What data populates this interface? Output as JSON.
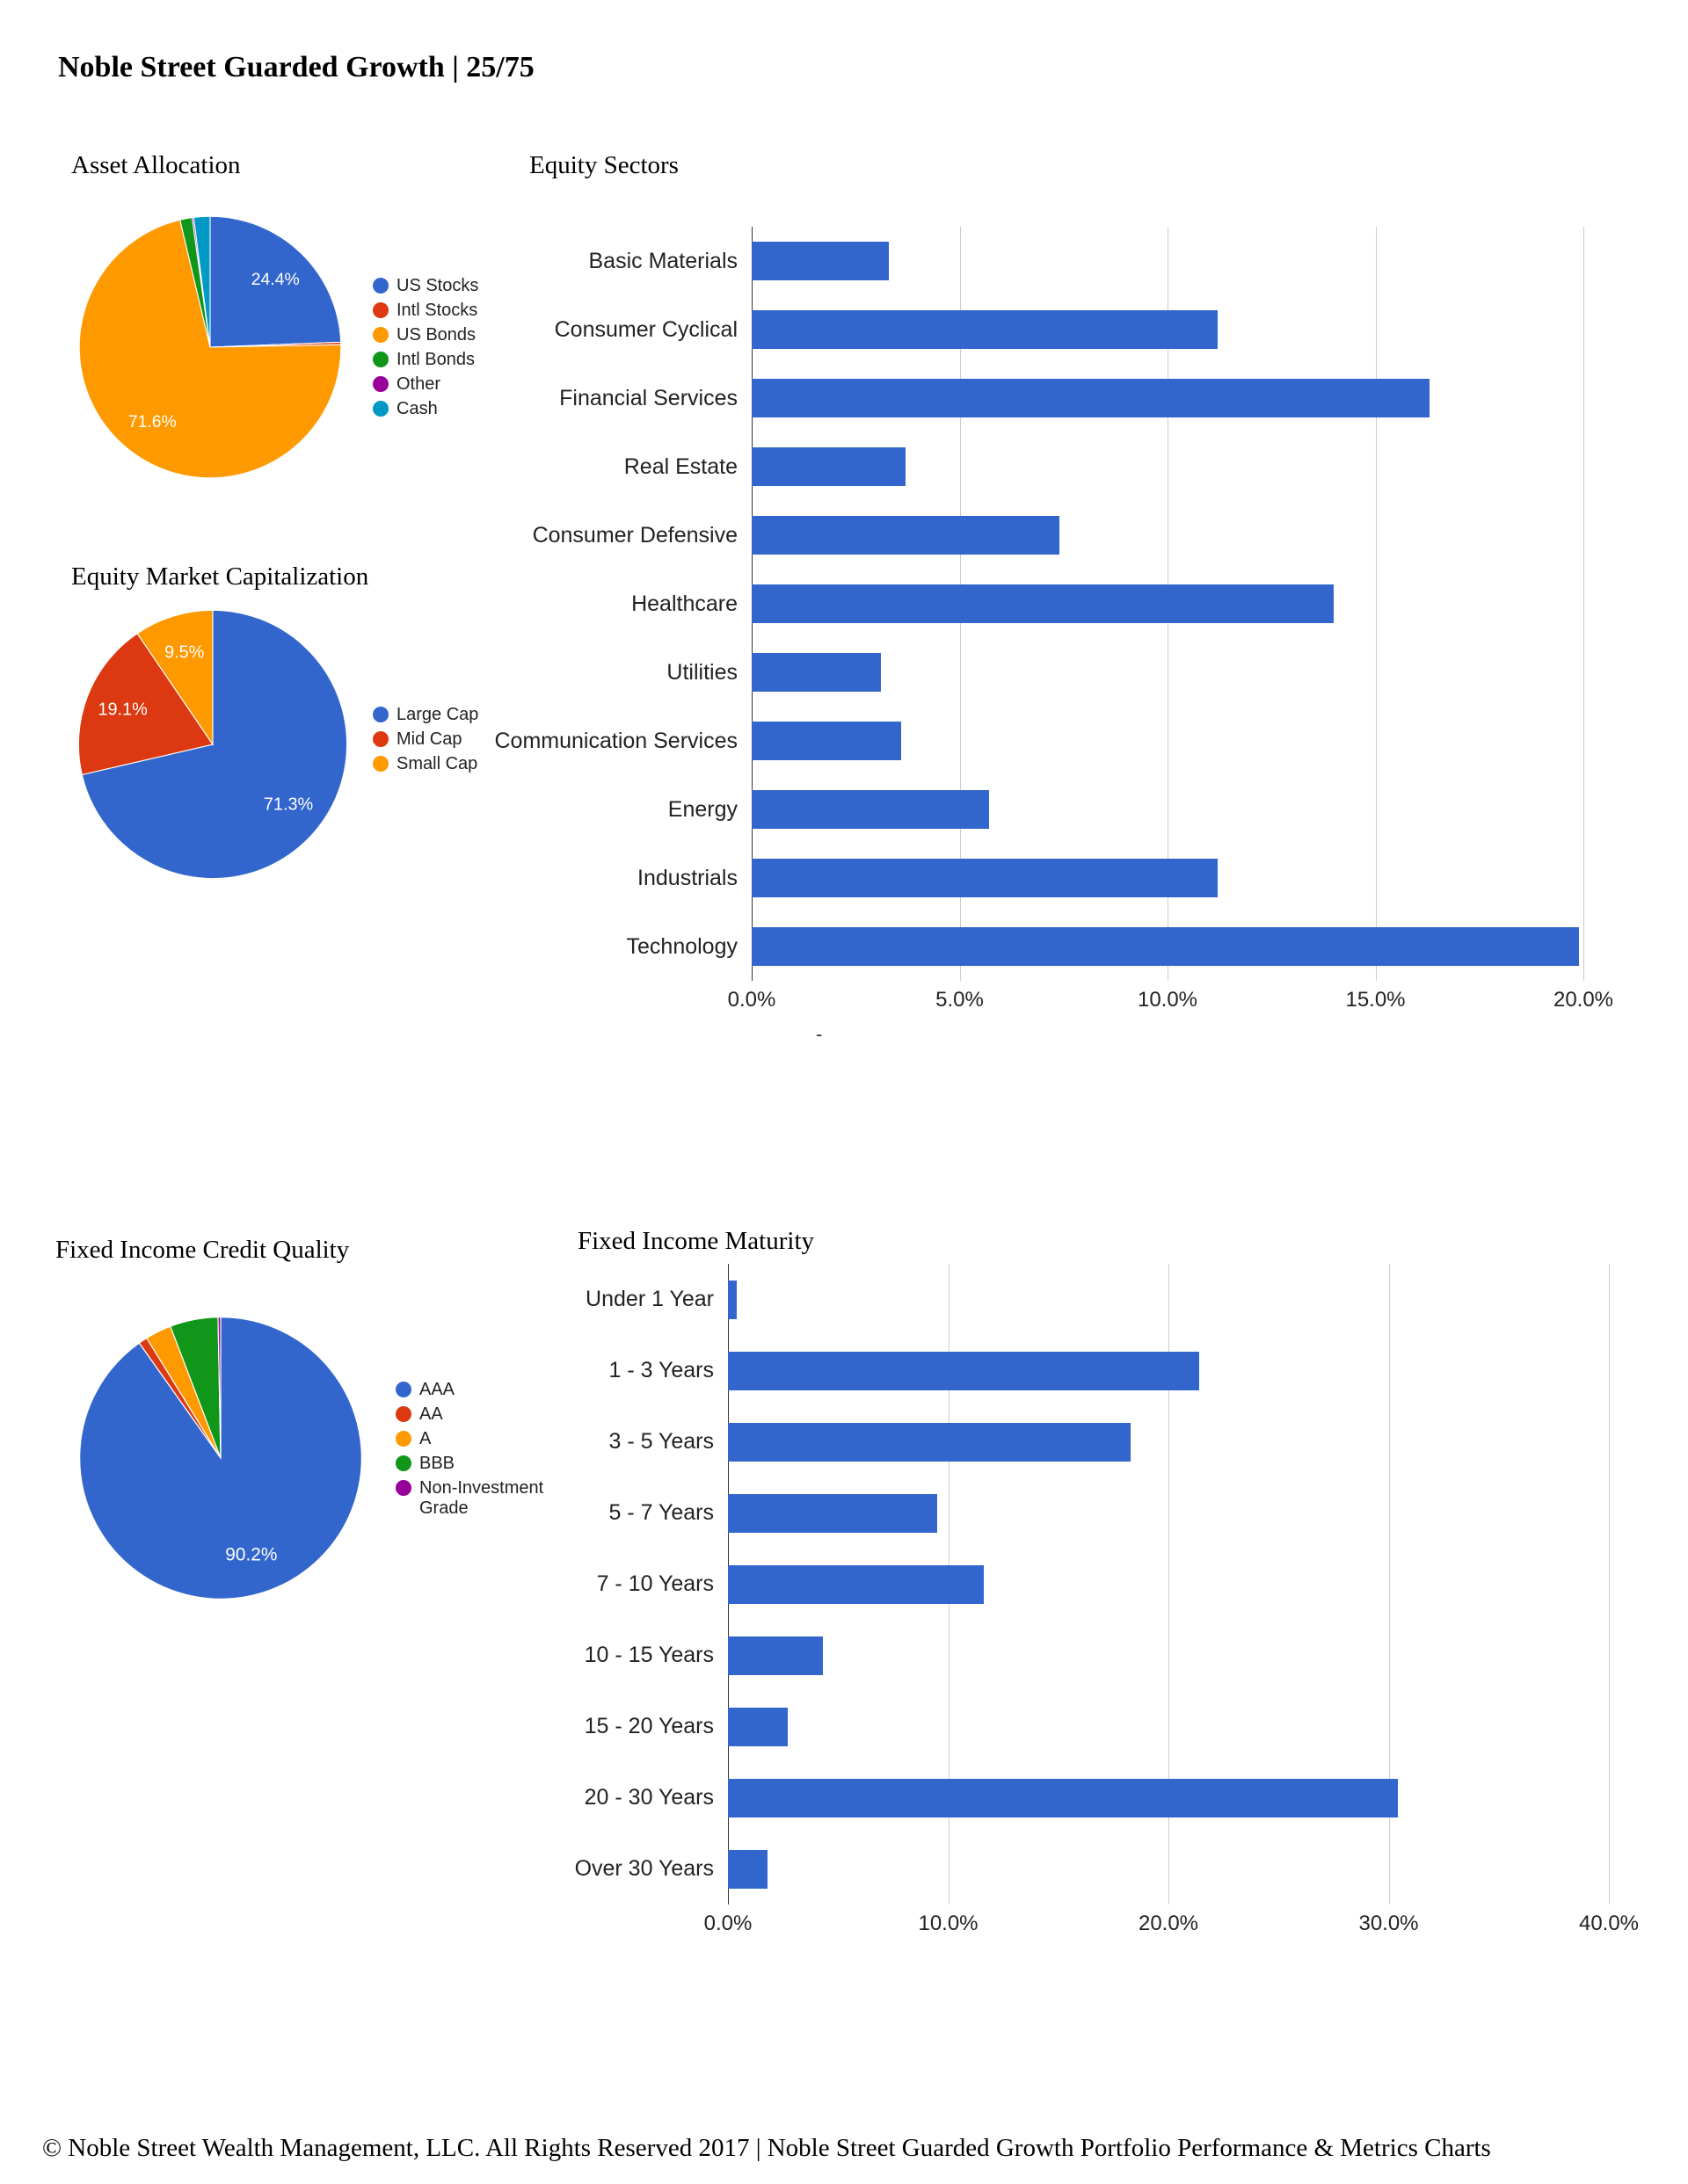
{
  "page": {
    "title": "Noble Street Guarded Growth | 25/75",
    "footer": "© Noble Street Wealth Management, LLC. All Rights Reserved 2017 | Noble Street Guarded Growth Portfolio Performance & Metrics Charts"
  },
  "palette": {
    "blue": "#3366cc",
    "red": "#dc3912",
    "orange": "#ff9900",
    "green": "#109618",
    "purple": "#990099",
    "teal": "#0099c6",
    "gridline": "#cccccc",
    "axis": "#333333"
  },
  "chart_data": [
    {
      "id": "asset_allocation",
      "type": "pie",
      "title": "Asset Allocation",
      "legend_position": "right",
      "slices": [
        {
          "label": "US Stocks",
          "value": 24.4,
          "color": "#3366cc",
          "data_label": "24.4%"
        },
        {
          "label": "Intl Stocks",
          "value": 0.3,
          "color": "#dc3912",
          "data_label": null
        },
        {
          "label": "US Bonds",
          "value": 71.6,
          "color": "#ff9900",
          "data_label": "71.6%"
        },
        {
          "label": "Intl Bonds",
          "value": 1.5,
          "color": "#109618",
          "data_label": null
        },
        {
          "label": "Other",
          "value": 0.2,
          "color": "#990099",
          "data_label": null
        },
        {
          "label": "Cash",
          "value": 2.0,
          "color": "#0099c6",
          "data_label": null
        }
      ]
    },
    {
      "id": "equity_sectors",
      "type": "bar",
      "title": "Equity Sectors",
      "orientation": "horizontal",
      "bar_color": "#3366cc",
      "grid": true,
      "categories": [
        "Basic Materials",
        "Consumer Cyclical",
        "Financial Services",
        "Real Estate",
        "Consumer Defensive",
        "Healthcare",
        "Utilities",
        "Communication Services",
        "Energy",
        "Industrials",
        "Technology"
      ],
      "values": [
        3.3,
        11.2,
        16.3,
        3.7,
        7.4,
        14.0,
        3.1,
        3.6,
        5.7,
        11.2,
        19.9
      ],
      "xlim": [
        0,
        20
      ],
      "tick_values": [
        0,
        5,
        10,
        15,
        20
      ],
      "tick_labels": [
        "0.0%",
        "5.0%",
        "10.0%",
        "15.0%",
        "20.0%"
      ],
      "footnote": "-"
    },
    {
      "id": "equity_market_cap",
      "type": "pie",
      "title": "Equity Market Capitalization",
      "legend_position": "right",
      "slices": [
        {
          "label": "Large Cap",
          "value": 71.3,
          "color": "#3366cc",
          "data_label": "71.3%"
        },
        {
          "label": "Mid Cap",
          "value": 19.1,
          "color": "#dc3912",
          "data_label": "19.1%"
        },
        {
          "label": "Small Cap",
          "value": 9.5,
          "color": "#ff9900",
          "data_label": "9.5%"
        }
      ]
    },
    {
      "id": "fixed_income_credit_quality",
      "type": "pie",
      "title": "Fixed Income Credit Quality",
      "legend_position": "right",
      "slices": [
        {
          "label": "AAA",
          "value": 90.2,
          "color": "#3366cc",
          "data_label": "90.2%"
        },
        {
          "label": "AA",
          "value": 1.0,
          "color": "#dc3912",
          "data_label": null
        },
        {
          "label": "A",
          "value": 3.0,
          "color": "#ff9900",
          "data_label": null
        },
        {
          "label": "BBB",
          "value": 5.5,
          "color": "#109618",
          "data_label": null
        },
        {
          "label": "Non-Investment Grade",
          "value": 0.3,
          "color": "#990099",
          "data_label": null
        }
      ]
    },
    {
      "id": "fixed_income_maturity",
      "type": "bar",
      "title": "Fixed Income Maturity",
      "orientation": "horizontal",
      "bar_color": "#3366cc",
      "grid": true,
      "categories": [
        "Under 1 Year",
        "1 - 3 Years",
        "3 - 5 Years",
        "5 - 7 Years",
        "7 - 10 Years",
        "10 - 15 Years",
        "15 - 20 Years",
        "20 - 30 Years",
        "Over 30 Years"
      ],
      "values": [
        0.4,
        21.4,
        18.3,
        9.5,
        11.6,
        4.3,
        2.7,
        30.4,
        1.8
      ],
      "xlim": [
        0,
        40
      ],
      "tick_values": [
        0,
        10,
        20,
        30,
        40
      ],
      "tick_labels": [
        "0.0%",
        "10.0%",
        "20.0%",
        "30.0%",
        "40.0%"
      ]
    }
  ]
}
